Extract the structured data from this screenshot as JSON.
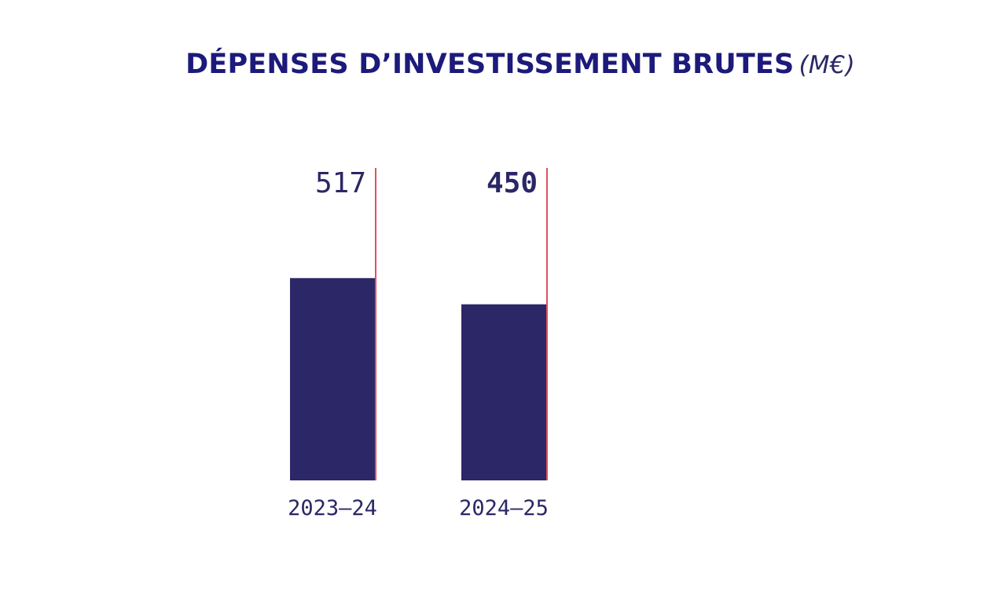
{
  "header": {
    "title": "DÉPENSES D’INVESTISSEMENT BRUTES",
    "unit": "(M€)"
  },
  "colors": {
    "title": "#1c1a7a",
    "bar": "#2c2766",
    "marker_line": "#e0525e",
    "label": "#2b2766"
  },
  "chart_data": {
    "type": "bar",
    "title": "DÉPENSES D’INVESTISSEMENT BRUTES (M€)",
    "categories": [
      "2023–24",
      "2024–25"
    ],
    "values": [
      517,
      450
    ],
    "value_labels": [
      "517",
      "450"
    ],
    "highlighted_index": 1,
    "ylim": [
      0,
      1000
    ],
    "grid": false,
    "legend": "none"
  }
}
